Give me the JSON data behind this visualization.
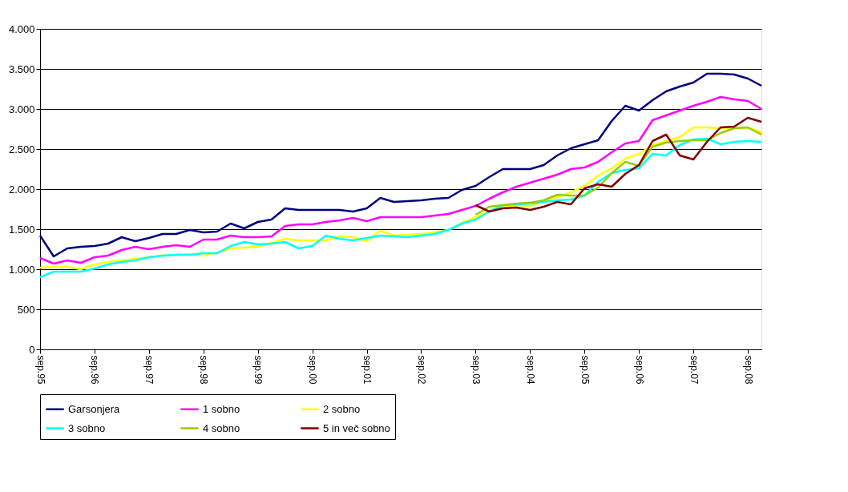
{
  "chart_data": {
    "type": "line",
    "categories": [
      "sep.95",
      null,
      null,
      null,
      "sep.96",
      null,
      null,
      null,
      "sep.97",
      null,
      null,
      null,
      "sep.98",
      null,
      null,
      null,
      "sep.99",
      null,
      null,
      null,
      "sep.00",
      null,
      null,
      null,
      "sep.01",
      null,
      null,
      null,
      "sep.02",
      null,
      null,
      null,
      "sep.03",
      null,
      null,
      null,
      "sep.04",
      null,
      null,
      null,
      "sep.05",
      null,
      null,
      null,
      "sep.06",
      null,
      null,
      null,
      "sep.07",
      null,
      null,
      null,
      "sep.08",
      null
    ],
    "series": [
      {
        "name": "Garsonjera",
        "color": "#000080",
        "values": [
          1420,
          1160,
          1260,
          1280,
          1290,
          1320,
          1400,
          1350,
          1390,
          1440,
          1440,
          1490,
          1460,
          1470,
          1570,
          1510,
          1590,
          1620,
          1760,
          1740,
          1740,
          1740,
          1740,
          1720,
          1760,
          1890,
          1840,
          1850,
          1860,
          1880,
          1890,
          1990,
          2040,
          2150,
          2250,
          2250,
          2250,
          2300,
          2420,
          2510,
          2560,
          2610,
          2850,
          3040,
          2980,
          3110,
          3220,
          3280,
          3330,
          3440,
          3440,
          3430,
          3380,
          3290
        ]
      },
      {
        "name": "1 sobno",
        "color": "#ff00ff",
        "values": [
          1140,
          1070,
          1110,
          1080,
          1150,
          1170,
          1240,
          1280,
          1250,
          1280,
          1300,
          1280,
          1370,
          1370,
          1420,
          1400,
          1400,
          1410,
          1540,
          1560,
          1560,
          1590,
          1610,
          1640,
          1600,
          1650,
          1650,
          1650,
          1650,
          1670,
          1690,
          1740,
          1790,
          1880,
          1960,
          2030,
          2080,
          2130,
          2180,
          2250,
          2270,
          2340,
          2460,
          2570,
          2600,
          2860,
          2920,
          2980,
          3040,
          3090,
          3150,
          3120,
          3100,
          3000
        ]
      },
      {
        "name": "2 sobno",
        "color": "#ffff00",
        "values": [
          1020,
          1030,
          1030,
          1000,
          1060,
          1090,
          1110,
          1130,
          1150,
          1170,
          1180,
          1190,
          1170,
          1210,
          1260,
          1270,
          1280,
          1330,
          1380,
          1360,
          1360,
          1360,
          1410,
          1400,
          1350,
          1480,
          1420,
          1430,
          1440,
          1460,
          1490,
          1580,
          1650,
          1730,
          1770,
          1800,
          1790,
          1850,
          1900,
          1960,
          2040,
          2170,
          2260,
          2380,
          2440,
          2550,
          2600,
          2650,
          2770,
          2770,
          2760,
          2760,
          2770,
          2710
        ]
      },
      {
        "name": "3 sobno",
        "color": "#00ffff",
        "values": [
          900,
          970,
          970,
          970,
          1010,
          1060,
          1090,
          1110,
          1150,
          1170,
          1180,
          1180,
          1200,
          1200,
          1290,
          1340,
          1310,
          1320,
          1340,
          1260,
          1290,
          1420,
          1380,
          1360,
          1390,
          1420,
          1410,
          1400,
          1420,
          1440,
          1490,
          1570,
          1620,
          1720,
          1800,
          1810,
          1820,
          1840,
          1860,
          1870,
          1920,
          2090,
          2200,
          2240,
          2260,
          2440,
          2420,
          2550,
          2620,
          2630,
          2560,
          2590,
          2600,
          2590
        ]
      },
      {
        "name": "4 sobno",
        "color": "#99cc00",
        "values": [
          null,
          null,
          null,
          null,
          null,
          null,
          null,
          null,
          null,
          null,
          null,
          null,
          null,
          null,
          null,
          null,
          null,
          null,
          null,
          null,
          null,
          null,
          null,
          null,
          null,
          null,
          null,
          null,
          null,
          null,
          null,
          null,
          1680,
          1780,
          1800,
          1820,
          1830,
          1860,
          1930,
          1920,
          1920,
          2020,
          2200,
          2340,
          2290,
          2530,
          2580,
          2600,
          2610,
          2610,
          2700,
          2760,
          2770,
          2680
        ]
      },
      {
        "name": "5 in več sobno",
        "color": "#800000",
        "values": [
          null,
          null,
          null,
          null,
          null,
          null,
          null,
          null,
          null,
          null,
          null,
          null,
          null,
          null,
          null,
          null,
          null,
          null,
          null,
          null,
          null,
          null,
          null,
          null,
          null,
          null,
          null,
          null,
          null,
          null,
          null,
          null,
          1800,
          1720,
          1760,
          1770,
          1740,
          1780,
          1840,
          1810,
          2010,
          2060,
          2030,
          2190,
          2300,
          2600,
          2680,
          2420,
          2370,
          2590,
          2770,
          2780,
          2890,
          2840
        ]
      }
    ],
    "ylim": [
      0,
      4000
    ],
    "yticks": [
      0,
      {
        "value": 500,
        "label": "500"
      },
      {
        "value": 1000,
        "label": "1.000"
      },
      {
        "value": 1500,
        "label": "1.500"
      },
      {
        "value": 2000,
        "label": "2.000"
      },
      {
        "value": 2500,
        "label": "2.500"
      },
      {
        "value": 3000,
        "label": "3.000"
      },
      {
        "value": 3500,
        "label": "3.500"
      },
      {
        "value": 4000,
        "label": "4.000"
      }
    ],
    "grid": "y",
    "legend": "bottom",
    "marker": "none",
    "line_style": "solid"
  }
}
